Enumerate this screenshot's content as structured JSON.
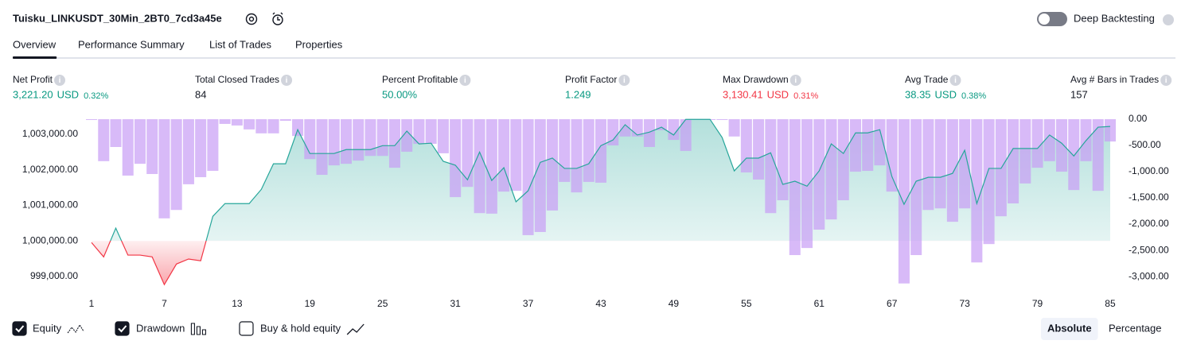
{
  "header": {
    "title": "Tuisku_LINKUSDT_30Min_2BT0_7cd3a45e",
    "toggle_label": "Deep Backtesting"
  },
  "tabs": [
    "Overview",
    "Performance Summary",
    "List of Trades",
    "Properties"
  ],
  "active_tab": 0,
  "metrics": [
    {
      "label": "Net Profit",
      "value": "3,221.20",
      "unit": "USD",
      "percent": "0.32%",
      "color": "#089981"
    },
    {
      "label": "Total Closed Trades",
      "value": "84",
      "color": "#131722"
    },
    {
      "label": "Percent Profitable",
      "value": "50.00%",
      "color": "#089981"
    },
    {
      "label": "Profit Factor",
      "value": "1.249",
      "color": "#089981"
    },
    {
      "label": "Max Drawdown",
      "value": "3,130.41",
      "unit": "USD",
      "percent": "0.31%",
      "color": "#f23645"
    },
    {
      "label": "Avg Trade",
      "value": "38.35",
      "unit": "USD",
      "percent": "0.38%",
      "color": "#089981"
    },
    {
      "label": "Avg # Bars in Trades",
      "value": "157",
      "color": "#131722"
    }
  ],
  "chart_data": {
    "type": "line",
    "x": [
      1,
      2,
      3,
      4,
      5,
      6,
      7,
      8,
      9,
      10,
      11,
      12,
      13,
      14,
      15,
      16,
      17,
      18,
      19,
      20,
      21,
      22,
      23,
      24,
      25,
      26,
      27,
      28,
      29,
      30,
      31,
      32,
      33,
      34,
      35,
      36,
      37,
      38,
      39,
      40,
      41,
      42,
      43,
      44,
      45,
      46,
      47,
      48,
      49,
      50,
      51,
      52,
      53,
      54,
      55,
      56,
      57,
      58,
      59,
      60,
      61,
      62,
      63,
      64,
      65,
      66,
      67,
      68,
      69,
      70,
      71,
      72,
      73,
      74,
      75,
      76,
      77,
      78,
      79,
      80,
      81,
      82,
      83,
      84,
      85
    ],
    "series": [
      {
        "name": "Equity",
        "type": "line",
        "color": "#26a69a",
        "negative_color": "#f23645",
        "visible": true,
        "values": [
          999955,
          999550,
          1000360,
          999600,
          999600,
          999550,
          998770,
          999350,
          999490,
          999440,
          1000690,
          1001050,
          1001050,
          1001050,
          1001450,
          1002170,
          1002170,
          1003130,
          1002460,
          1002460,
          1002460,
          1002570,
          1002570,
          1002570,
          1002680,
          1002680,
          1003090,
          1002730,
          1002750,
          1002240,
          1002130,
          1001720,
          1002500,
          1001700,
          1002060,
          1001100,
          1001410,
          1002210,
          1002330,
          1002040,
          1002040,
          1002170,
          1002680,
          1002840,
          1003270,
          1002980,
          1003060,
          1003200,
          1002980,
          1003420,
          1003420,
          1003420,
          1002910,
          1001970,
          1002330,
          1002330,
          1002480,
          1001590,
          1001680,
          1001540,
          1001970,
          1002730,
          1002460,
          1003040,
          1003040,
          1003130,
          1001810,
          1001030,
          1001680,
          1001790,
          1001790,
          1001900,
          1002550,
          1001050,
          1002040,
          1002040,
          1002600,
          1002600,
          1002600,
          1002980,
          1002750,
          1002390,
          1002820,
          1003200,
          1003221.2
        ]
      },
      {
        "name": "Drawdown",
        "type": "bar",
        "axis": "y2",
        "color": "#c89cf5",
        "visible": true,
        "values": [
          0,
          -800,
          -530,
          -1075,
          -850,
          -1045,
          -1890,
          -1730,
          -1240,
          -1105,
          -985,
          -90,
          -120,
          -195,
          -270,
          -270,
          -30,
          -320,
          -760,
          -1060,
          -880,
          -850,
          -790,
          -700,
          -700,
          -925,
          -620,
          -470,
          -470,
          -650,
          -1485,
          -1290,
          -1790,
          -1800,
          -1380,
          -1365,
          -2210,
          -2150,
          -1740,
          -1195,
          -1395,
          -1195,
          -1210,
          -500,
          -330,
          -330,
          -530,
          -210,
          -395,
          -605,
          0,
          0,
          0,
          -330,
          -1015,
          -1150,
          -1790,
          -1545,
          -2590,
          -2455,
          -2105,
          -1910,
          -1545,
          -1000,
          -985,
          -880,
          -1380,
          -3130.41,
          -2590,
          -1730,
          -1700,
          -1955,
          -1700,
          -2730,
          -2380,
          -1850,
          -1605,
          -1225,
          -925,
          -800,
          -1000,
          -1350,
          -800,
          -1365,
          -425
        ]
      }
    ],
    "xlim": [
      0.5,
      85.5
    ],
    "xticks": [
      1,
      7,
      13,
      19,
      25,
      31,
      37,
      43,
      49,
      55,
      61,
      67,
      73,
      79,
      85
    ],
    "ylim": [
      998730,
      1003425
    ],
    "yticks": [
      {
        "value": 999000,
        "label": "999,000.00"
      },
      {
        "value": 1000000,
        "label": "1,000,000.00"
      },
      {
        "value": 1001000,
        "label": "1,001,000.00"
      },
      {
        "value": 1002000,
        "label": "1,002,000.00"
      },
      {
        "value": 1003000,
        "label": "1,003,000.00"
      }
    ],
    "y2lim": [
      -3180,
      0
    ],
    "y2ticks": [
      {
        "value": 0,
        "label": "0.00"
      },
      {
        "value": -500,
        "label": "-500.00"
      },
      {
        "value": -1000,
        "label": "-1,000.00"
      },
      {
        "value": -1500,
        "label": "-1,500.00"
      },
      {
        "value": -2000,
        "label": "-2,000.00"
      },
      {
        "value": -2500,
        "label": "-2,500.00"
      },
      {
        "value": -3000,
        "label": "-3,000.00"
      }
    ]
  },
  "footer": {
    "buy_hold_label": "Buy & hold equity",
    "buy_hold_checked": false,
    "scale_buttons": [
      "Absolute",
      "Percentage"
    ],
    "active_scale": 0
  }
}
